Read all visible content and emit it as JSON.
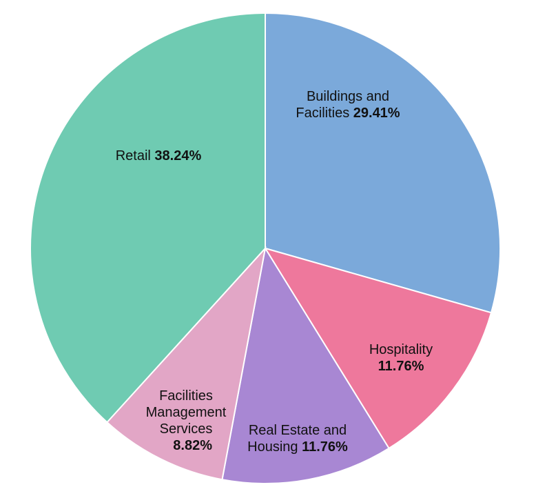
{
  "chart_data": {
    "type": "pie",
    "title": "",
    "slices": [
      {
        "label": "Buildings and Facilities",
        "value": 29.41,
        "value_label": "29.41%",
        "color": "#7BA9DA"
      },
      {
        "label": "Hospitality",
        "value": 11.76,
        "value_label": "11.76%",
        "color": "#EE789C"
      },
      {
        "label": "Real Estate and Housing",
        "value": 11.76,
        "value_label": "11.76%",
        "color": "#A887D3"
      },
      {
        "label": "Facilities Management Services",
        "value": 8.82,
        "value_label": "8.82%",
        "color": "#E2A6C6"
      },
      {
        "label": "Retail",
        "value": 38.24,
        "value_label": "38.24%",
        "color": "#6FCBB2"
      }
    ],
    "start": "12 o'clock",
    "direction": "clockwise"
  }
}
